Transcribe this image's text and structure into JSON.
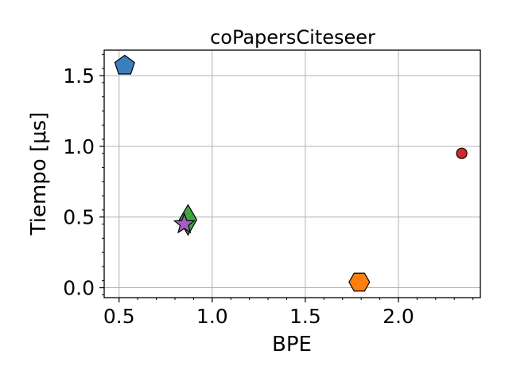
{
  "chart_data": {
    "type": "scatter",
    "title": "coPapersCiteseer",
    "xlabel": "BPE",
    "ylabel": "Tiempo [μs]",
    "xlim": [
      0.42,
      2.44
    ],
    "ylim": [
      -0.07,
      1.68
    ],
    "xticks": [
      "0.5",
      "1.0",
      "1.5",
      "2.0"
    ],
    "yticks": [
      "0.0",
      "0.5",
      "1.0",
      "1.5"
    ],
    "grid": true,
    "points": [
      {
        "x": 0.53,
        "y": 1.57,
        "marker": "pentagon",
        "color": "#3a7ebf"
      },
      {
        "x": 2.34,
        "y": 0.95,
        "marker": "circle",
        "color": "#d62728"
      },
      {
        "x": 0.87,
        "y": 0.48,
        "marker": "diamond",
        "color": "#3fa63f"
      },
      {
        "x": 0.85,
        "y": 0.45,
        "marker": "star",
        "color": "#a55fbf"
      },
      {
        "x": 1.79,
        "y": 0.04,
        "marker": "hexagon",
        "color": "#ff7f0e"
      }
    ]
  }
}
